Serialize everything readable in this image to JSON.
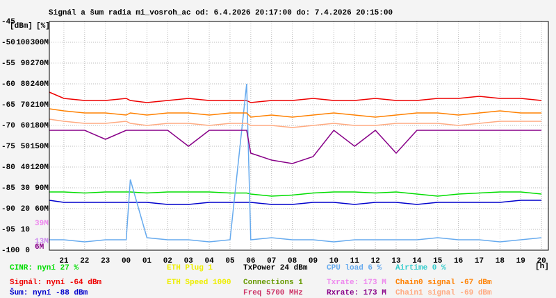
{
  "chart_data": {
    "type": "line",
    "title": "Signál a šum radia mi_vosroh_ac od: 6.4.2026 20:17:00 do: 7.4.2026 20:15:00",
    "ylabel": "[dBm]",
    "y2label": "[%]",
    "xlabel": "[h]",
    "x": [
      20.3,
      21,
      22,
      23,
      24,
      24.2,
      25,
      26,
      27,
      28,
      29,
      29.8,
      30,
      31,
      32,
      33,
      34,
      35,
      36,
      37,
      38,
      39,
      40,
      41,
      42,
      43,
      44
    ],
    "xlim": [
      20.3,
      44.33
    ],
    "xticks": [
      {
        "value": 21,
        "label": "21"
      },
      {
        "value": 22,
        "label": "22"
      },
      {
        "value": 23,
        "label": "23"
      },
      {
        "value": 24,
        "label": "00"
      },
      {
        "value": 25,
        "label": "01"
      },
      {
        "value": 26,
        "label": "02"
      },
      {
        "value": 27,
        "label": "03"
      },
      {
        "value": 28,
        "label": "04"
      },
      {
        "value": 29,
        "label": "05"
      },
      {
        "value": 30,
        "label": "06"
      },
      {
        "value": 31,
        "label": "07"
      },
      {
        "value": 32,
        "label": "08"
      },
      {
        "value": 33,
        "label": "09"
      },
      {
        "value": 34,
        "label": "10"
      },
      {
        "value": 35,
        "label": "11"
      },
      {
        "value": 36,
        "label": "12"
      },
      {
        "value": 37,
        "label": "13"
      },
      {
        "value": 38,
        "label": "14"
      },
      {
        "value": 39,
        "label": "15"
      },
      {
        "value": 40,
        "label": "16"
      },
      {
        "value": 41,
        "label": "17"
      },
      {
        "value": 42,
        "label": "18"
      },
      {
        "value": 43,
        "label": "19"
      },
      {
        "value": 44,
        "label": "20"
      }
    ],
    "ylim": [
      -100,
      -45
    ],
    "yticks": [
      -100,
      -95,
      -90,
      -85,
      -80,
      -75,
      -70,
      -65,
      -60,
      -55,
      -50,
      -45
    ],
    "y2lim": [
      0,
      110
    ],
    "y2ticks": [
      0,
      10,
      20,
      30,
      40,
      50,
      60,
      70,
      80,
      90,
      100
    ],
    "y3lim": [
      0,
      330
    ],
    "y3ticks": [
      {
        "value": 60,
        "label": "60M"
      },
      {
        "value": 90,
        "label": "90M"
      },
      {
        "value": 120,
        "label": "120M"
      },
      {
        "value": 150,
        "label": "150M"
      },
      {
        "value": 180,
        "label": "180M"
      },
      {
        "value": 210,
        "label": "210M"
      },
      {
        "value": 240,
        "label": "240M"
      },
      {
        "value": 270,
        "label": "270M"
      },
      {
        "value": 300,
        "label": "300M"
      }
    ],
    "grid": true,
    "series": [
      {
        "name": "CINR: nyní 27 %",
        "color": "#00dd00",
        "axis": "y2",
        "values": [
          28,
          28,
          27.5,
          28,
          28,
          28,
          27.5,
          28,
          28,
          28,
          27.5,
          27.5,
          27,
          26,
          26.5,
          27.5,
          28,
          28,
          27.5,
          28,
          27,
          26,
          27,
          27.5,
          28,
          28,
          27
        ]
      },
      {
        "name": "Signál: nyní -64 dBm",
        "color": "#ee0000",
        "values": [
          -62,
          -63.5,
          -64,
          -64,
          -63.5,
          -64,
          -64.5,
          -64,
          -63.5,
          -64,
          -64,
          -64,
          -64.5,
          -64,
          -64,
          -63.5,
          -64,
          -64,
          -63.5,
          -64,
          -64,
          -63.5,
          -63.5,
          -63,
          -63.5,
          -63.5,
          -64
        ]
      },
      {
        "name": "Šum: nyní -88 dBm",
        "color": "#0000cc",
        "values": [
          -88,
          -88.5,
          -88.5,
          -88.5,
          -88.5,
          -88.5,
          -88.5,
          -89,
          -89,
          -88.5,
          -88.5,
          -88.5,
          -88.5,
          -89,
          -89,
          -88.5,
          -88.5,
          -89,
          -88.5,
          -88.5,
          -89,
          -88.5,
          -88.5,
          -88.5,
          -88.5,
          -88,
          -88
        ]
      },
      {
        "name": "CPU load 6 %",
        "color": "#66aaee",
        "axis": "y2",
        "values": [
          5,
          5,
          4,
          5,
          5,
          34,
          6,
          5,
          5,
          4,
          5,
          80,
          5,
          6,
          5,
          5,
          4,
          5,
          5,
          5,
          5,
          6,
          5,
          5,
          4,
          5,
          6
        ]
      },
      {
        "name": "Chain0 signal -67 dBm",
        "color": "#ff8000",
        "values": [
          -66,
          -66.5,
          -67,
          -67,
          -67.5,
          -67,
          -67.5,
          -67,
          -67,
          -67.5,
          -67,
          -67,
          -68,
          -67.5,
          -68,
          -67.5,
          -67,
          -67.5,
          -68,
          -67.5,
          -67,
          -67,
          -67.5,
          -67,
          -66.5,
          -67,
          -67
        ]
      },
      {
        "name": "Chain1 signal -69 dBm",
        "color": "#ffaa80",
        "values": [
          -68.5,
          -69,
          -69.5,
          -69.5,
          -69,
          -69.5,
          -70,
          -69.5,
          -69.5,
          -70,
          -69.5,
          -69.5,
          -70,
          -70,
          -70.5,
          -70,
          -69.5,
          -70,
          -70,
          -69.5,
          -69.5,
          -69.5,
          -70,
          -69.5,
          -69,
          -69,
          -69
        ]
      },
      {
        "name": "Rxrate: 173 M",
        "color": "#880088",
        "axis": "y3",
        "values": [
          173,
          173,
          173,
          160,
          173,
          173,
          173,
          173,
          150,
          173,
          173,
          173,
          140,
          130,
          125,
          135,
          173,
          150,
          173,
          140,
          173,
          173,
          173,
          173,
          173,
          173,
          173
        ]
      }
    ],
    "legend_extra": [
      {
        "text": "ETH Plug 1",
        "color": "#eeee00"
      },
      {
        "text": "ETH Speed 1000",
        "color": "#eeee00"
      },
      {
        "text": "TxPower 24 dBm",
        "color": "#000000"
      },
      {
        "text": "Connections 1",
        "color": "#669900"
      },
      {
        "text": "Freq 5700 MHz",
        "color": "#cc3366"
      },
      {
        "text": "Txrate: 173 M",
        "color": "#ee88ee"
      },
      {
        "text": "Airtime 0 %",
        "color": "#33cccc"
      }
    ],
    "annotations": [
      {
        "text": "39M",
        "color": "#ee88ee"
      },
      {
        "text": "13M",
        "color": "#cc88ee"
      },
      {
        "text": "6M",
        "color": "#880088"
      }
    ]
  }
}
